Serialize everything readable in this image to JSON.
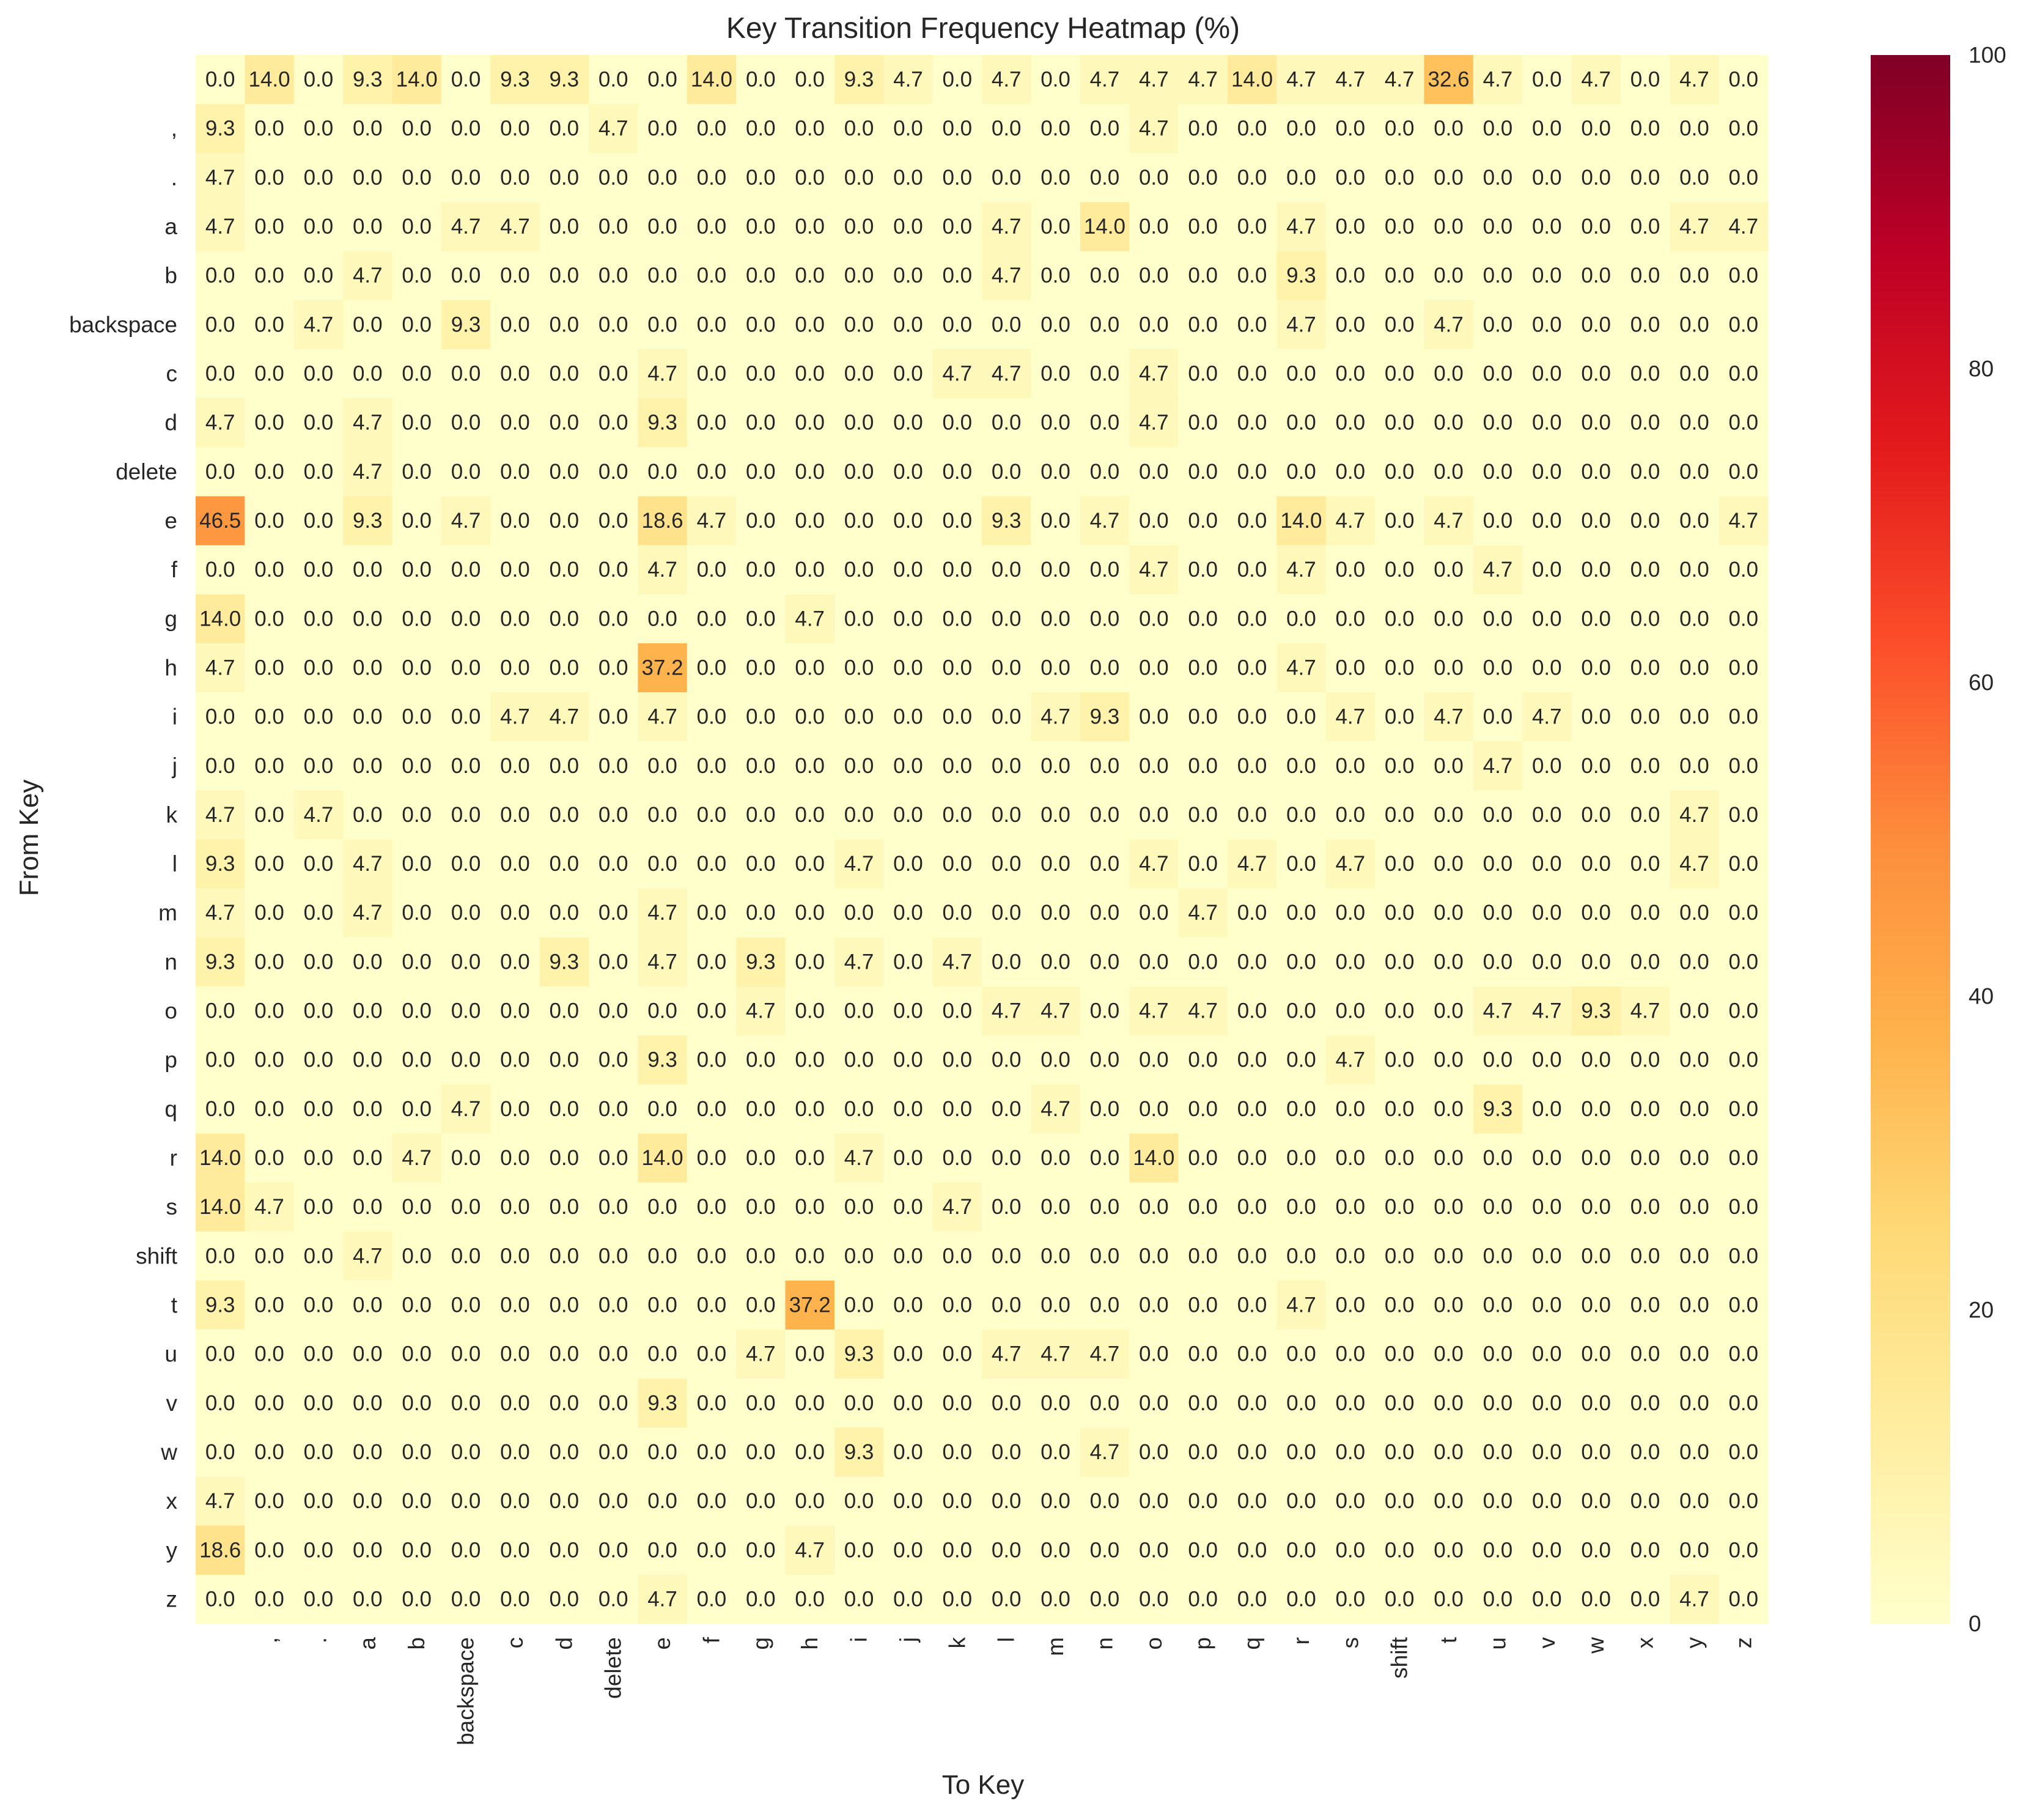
{
  "chart_data": {
    "type": "heatmap",
    "title": "Key Transition Frequency Heatmap (%)",
    "xlabel": "To Key",
    "ylabel": "From Key",
    "colormap": "YlOrRd",
    "vmin": 0,
    "vmax": 100,
    "colorbar_ticks": [
      0,
      20,
      40,
      60,
      80,
      100
    ],
    "grid": false,
    "value_format": "0.0",
    "row_labels": [
      "",
      ",",
      ".",
      "a",
      "b",
      "backspace",
      "c",
      "d",
      "delete",
      "e",
      "f",
      "g",
      "h",
      "i",
      "j",
      "k",
      "l",
      "m",
      "n",
      "o",
      "p",
      "q",
      "r",
      "s",
      "shift",
      "t",
      "u",
      "v",
      "w",
      "x",
      "y",
      "z"
    ],
    "col_labels": [
      "",
      ",",
      ".",
      "a",
      "b",
      "backspace",
      "c",
      "d",
      "delete",
      "e",
      "f",
      "g",
      "h",
      "i",
      "j",
      "k",
      "l",
      "m",
      "n",
      "o",
      "p",
      "q",
      "r",
      "s",
      "shift",
      "t",
      "u",
      "v",
      "w",
      "x",
      "y",
      "z"
    ],
    "values": [
      [
        0.0,
        14.0,
        0.0,
        9.3,
        14.0,
        0.0,
        9.3,
        9.3,
        0.0,
        0.0,
        14.0,
        0.0,
        0.0,
        9.3,
        4.7,
        0.0,
        4.7,
        0.0,
        4.7,
        4.7,
        4.7,
        14.0,
        4.7,
        4.7,
        4.7,
        32.6,
        4.7,
        0.0,
        4.7,
        0.0,
        4.7,
        0.0
      ],
      [
        9.3,
        0.0,
        0.0,
        0.0,
        0.0,
        0.0,
        0.0,
        0.0,
        4.7,
        0.0,
        0.0,
        0.0,
        0.0,
        0.0,
        0.0,
        0.0,
        0.0,
        0.0,
        0.0,
        4.7,
        0.0,
        0.0,
        0.0,
        0.0,
        0.0,
        0.0,
        0.0,
        0.0,
        0.0,
        0.0,
        0.0,
        0.0
      ],
      [
        4.7,
        0.0,
        0.0,
        0.0,
        0.0,
        0.0,
        0.0,
        0.0,
        0.0,
        0.0,
        0.0,
        0.0,
        0.0,
        0.0,
        0.0,
        0.0,
        0.0,
        0.0,
        0.0,
        0.0,
        0.0,
        0.0,
        0.0,
        0.0,
        0.0,
        0.0,
        0.0,
        0.0,
        0.0,
        0.0,
        0.0,
        0.0
      ],
      [
        4.7,
        0.0,
        0.0,
        0.0,
        0.0,
        4.7,
        4.7,
        0.0,
        0.0,
        0.0,
        0.0,
        0.0,
        0.0,
        0.0,
        0.0,
        0.0,
        4.7,
        0.0,
        14.0,
        0.0,
        0.0,
        0.0,
        4.7,
        0.0,
        0.0,
        0.0,
        0.0,
        0.0,
        0.0,
        0.0,
        4.7,
        4.7
      ],
      [
        0.0,
        0.0,
        0.0,
        4.7,
        0.0,
        0.0,
        0.0,
        0.0,
        0.0,
        0.0,
        0.0,
        0.0,
        0.0,
        0.0,
        0.0,
        0.0,
        4.7,
        0.0,
        0.0,
        0.0,
        0.0,
        0.0,
        9.3,
        0.0,
        0.0,
        0.0,
        0.0,
        0.0,
        0.0,
        0.0,
        0.0,
        0.0
      ],
      [
        0.0,
        0.0,
        4.7,
        0.0,
        0.0,
        9.3,
        0.0,
        0.0,
        0.0,
        0.0,
        0.0,
        0.0,
        0.0,
        0.0,
        0.0,
        0.0,
        0.0,
        0.0,
        0.0,
        0.0,
        0.0,
        0.0,
        4.7,
        0.0,
        0.0,
        4.7,
        0.0,
        0.0,
        0.0,
        0.0,
        0.0,
        0.0
      ],
      [
        0.0,
        0.0,
        0.0,
        0.0,
        0.0,
        0.0,
        0.0,
        0.0,
        0.0,
        4.7,
        0.0,
        0.0,
        0.0,
        0.0,
        0.0,
        4.7,
        4.7,
        0.0,
        0.0,
        4.7,
        0.0,
        0.0,
        0.0,
        0.0,
        0.0,
        0.0,
        0.0,
        0.0,
        0.0,
        0.0,
        0.0,
        0.0
      ],
      [
        4.7,
        0.0,
        0.0,
        4.7,
        0.0,
        0.0,
        0.0,
        0.0,
        0.0,
        9.3,
        0.0,
        0.0,
        0.0,
        0.0,
        0.0,
        0.0,
        0.0,
        0.0,
        0.0,
        4.7,
        0.0,
        0.0,
        0.0,
        0.0,
        0.0,
        0.0,
        0.0,
        0.0,
        0.0,
        0.0,
        0.0,
        0.0
      ],
      [
        0.0,
        0.0,
        0.0,
        4.7,
        0.0,
        0.0,
        0.0,
        0.0,
        0.0,
        0.0,
        0.0,
        0.0,
        0.0,
        0.0,
        0.0,
        0.0,
        0.0,
        0.0,
        0.0,
        0.0,
        0.0,
        0.0,
        0.0,
        0.0,
        0.0,
        0.0,
        0.0,
        0.0,
        0.0,
        0.0,
        0.0,
        0.0
      ],
      [
        46.5,
        0.0,
        0.0,
        9.3,
        0.0,
        4.7,
        0.0,
        0.0,
        0.0,
        18.6,
        4.7,
        0.0,
        0.0,
        0.0,
        0.0,
        0.0,
        9.3,
        0.0,
        4.7,
        0.0,
        0.0,
        0.0,
        14.0,
        4.7,
        0.0,
        4.7,
        0.0,
        0.0,
        0.0,
        0.0,
        0.0,
        4.7
      ],
      [
        0.0,
        0.0,
        0.0,
        0.0,
        0.0,
        0.0,
        0.0,
        0.0,
        0.0,
        4.7,
        0.0,
        0.0,
        0.0,
        0.0,
        0.0,
        0.0,
        0.0,
        0.0,
        0.0,
        4.7,
        0.0,
        0.0,
        4.7,
        0.0,
        0.0,
        0.0,
        4.7,
        0.0,
        0.0,
        0.0,
        0.0,
        0.0
      ],
      [
        14.0,
        0.0,
        0.0,
        0.0,
        0.0,
        0.0,
        0.0,
        0.0,
        0.0,
        0.0,
        0.0,
        0.0,
        4.7,
        0.0,
        0.0,
        0.0,
        0.0,
        0.0,
        0.0,
        0.0,
        0.0,
        0.0,
        0.0,
        0.0,
        0.0,
        0.0,
        0.0,
        0.0,
        0.0,
        0.0,
        0.0,
        0.0
      ],
      [
        4.7,
        0.0,
        0.0,
        0.0,
        0.0,
        0.0,
        0.0,
        0.0,
        0.0,
        37.2,
        0.0,
        0.0,
        0.0,
        0.0,
        0.0,
        0.0,
        0.0,
        0.0,
        0.0,
        0.0,
        0.0,
        0.0,
        4.7,
        0.0,
        0.0,
        0.0,
        0.0,
        0.0,
        0.0,
        0.0,
        0.0,
        0.0
      ],
      [
        0.0,
        0.0,
        0.0,
        0.0,
        0.0,
        0.0,
        4.7,
        4.7,
        0.0,
        4.7,
        0.0,
        0.0,
        0.0,
        0.0,
        0.0,
        0.0,
        0.0,
        4.7,
        9.3,
        0.0,
        0.0,
        0.0,
        0.0,
        4.7,
        0.0,
        4.7,
        0.0,
        4.7,
        0.0,
        0.0,
        0.0,
        0.0
      ],
      [
        0.0,
        0.0,
        0.0,
        0.0,
        0.0,
        0.0,
        0.0,
        0.0,
        0.0,
        0.0,
        0.0,
        0.0,
        0.0,
        0.0,
        0.0,
        0.0,
        0.0,
        0.0,
        0.0,
        0.0,
        0.0,
        0.0,
        0.0,
        0.0,
        0.0,
        0.0,
        4.7,
        0.0,
        0.0,
        0.0,
        0.0,
        0.0
      ],
      [
        4.7,
        0.0,
        4.7,
        0.0,
        0.0,
        0.0,
        0.0,
        0.0,
        0.0,
        0.0,
        0.0,
        0.0,
        0.0,
        0.0,
        0.0,
        0.0,
        0.0,
        0.0,
        0.0,
        0.0,
        0.0,
        0.0,
        0.0,
        0.0,
        0.0,
        0.0,
        0.0,
        0.0,
        0.0,
        0.0,
        4.7,
        0.0
      ],
      [
        9.3,
        0.0,
        0.0,
        4.7,
        0.0,
        0.0,
        0.0,
        0.0,
        0.0,
        0.0,
        0.0,
        0.0,
        0.0,
        4.7,
        0.0,
        0.0,
        0.0,
        0.0,
        0.0,
        4.7,
        0.0,
        4.7,
        0.0,
        4.7,
        0.0,
        0.0,
        0.0,
        0.0,
        0.0,
        0.0,
        4.7,
        0.0
      ],
      [
        4.7,
        0.0,
        0.0,
        4.7,
        0.0,
        0.0,
        0.0,
        0.0,
        0.0,
        4.7,
        0.0,
        0.0,
        0.0,
        0.0,
        0.0,
        0.0,
        0.0,
        0.0,
        0.0,
        0.0,
        4.7,
        0.0,
        0.0,
        0.0,
        0.0,
        0.0,
        0.0,
        0.0,
        0.0,
        0.0,
        0.0,
        0.0
      ],
      [
        9.3,
        0.0,
        0.0,
        0.0,
        0.0,
        0.0,
        0.0,
        9.3,
        0.0,
        4.7,
        0.0,
        9.3,
        0.0,
        4.7,
        0.0,
        4.7,
        0.0,
        0.0,
        0.0,
        0.0,
        0.0,
        0.0,
        0.0,
        0.0,
        0.0,
        0.0,
        0.0,
        0.0,
        0.0,
        0.0,
        0.0,
        0.0
      ],
      [
        0.0,
        0.0,
        0.0,
        0.0,
        0.0,
        0.0,
        0.0,
        0.0,
        0.0,
        0.0,
        0.0,
        4.7,
        0.0,
        0.0,
        0.0,
        0.0,
        4.7,
        4.7,
        0.0,
        4.7,
        4.7,
        0.0,
        0.0,
        0.0,
        0.0,
        0.0,
        4.7,
        4.7,
        9.3,
        4.7,
        0.0,
        0.0
      ],
      [
        0.0,
        0.0,
        0.0,
        0.0,
        0.0,
        0.0,
        0.0,
        0.0,
        0.0,
        9.3,
        0.0,
        0.0,
        0.0,
        0.0,
        0.0,
        0.0,
        0.0,
        0.0,
        0.0,
        0.0,
        0.0,
        0.0,
        0.0,
        4.7,
        0.0,
        0.0,
        0.0,
        0.0,
        0.0,
        0.0,
        0.0,
        0.0
      ],
      [
        0.0,
        0.0,
        0.0,
        0.0,
        0.0,
        4.7,
        0.0,
        0.0,
        0.0,
        0.0,
        0.0,
        0.0,
        0.0,
        0.0,
        0.0,
        0.0,
        0.0,
        4.7,
        0.0,
        0.0,
        0.0,
        0.0,
        0.0,
        0.0,
        0.0,
        0.0,
        9.3,
        0.0,
        0.0,
        0.0,
        0.0,
        0.0
      ],
      [
        14.0,
        0.0,
        0.0,
        0.0,
        4.7,
        0.0,
        0.0,
        0.0,
        0.0,
        14.0,
        0.0,
        0.0,
        0.0,
        4.7,
        0.0,
        0.0,
        0.0,
        0.0,
        0.0,
        14.0,
        0.0,
        0.0,
        0.0,
        0.0,
        0.0,
        0.0,
        0.0,
        0.0,
        0.0,
        0.0,
        0.0,
        0.0
      ],
      [
        14.0,
        4.7,
        0.0,
        0.0,
        0.0,
        0.0,
        0.0,
        0.0,
        0.0,
        0.0,
        0.0,
        0.0,
        0.0,
        0.0,
        0.0,
        4.7,
        0.0,
        0.0,
        0.0,
        0.0,
        0.0,
        0.0,
        0.0,
        0.0,
        0.0,
        0.0,
        0.0,
        0.0,
        0.0,
        0.0,
        0.0,
        0.0
      ],
      [
        0.0,
        0.0,
        0.0,
        4.7,
        0.0,
        0.0,
        0.0,
        0.0,
        0.0,
        0.0,
        0.0,
        0.0,
        0.0,
        0.0,
        0.0,
        0.0,
        0.0,
        0.0,
        0.0,
        0.0,
        0.0,
        0.0,
        0.0,
        0.0,
        0.0,
        0.0,
        0.0,
        0.0,
        0.0,
        0.0,
        0.0,
        0.0
      ],
      [
        9.3,
        0.0,
        0.0,
        0.0,
        0.0,
        0.0,
        0.0,
        0.0,
        0.0,
        0.0,
        0.0,
        0.0,
        37.2,
        0.0,
        0.0,
        0.0,
        0.0,
        0.0,
        0.0,
        0.0,
        0.0,
        0.0,
        4.7,
        0.0,
        0.0,
        0.0,
        0.0,
        0.0,
        0.0,
        0.0,
        0.0,
        0.0
      ],
      [
        0.0,
        0.0,
        0.0,
        0.0,
        0.0,
        0.0,
        0.0,
        0.0,
        0.0,
        0.0,
        0.0,
        4.7,
        0.0,
        9.3,
        0.0,
        0.0,
        4.7,
        4.7,
        4.7,
        0.0,
        0.0,
        0.0,
        0.0,
        0.0,
        0.0,
        0.0,
        0.0,
        0.0,
        0.0,
        0.0,
        0.0,
        0.0
      ],
      [
        0.0,
        0.0,
        0.0,
        0.0,
        0.0,
        0.0,
        0.0,
        0.0,
        0.0,
        9.3,
        0.0,
        0.0,
        0.0,
        0.0,
        0.0,
        0.0,
        0.0,
        0.0,
        0.0,
        0.0,
        0.0,
        0.0,
        0.0,
        0.0,
        0.0,
        0.0,
        0.0,
        0.0,
        0.0,
        0.0,
        0.0,
        0.0
      ],
      [
        0.0,
        0.0,
        0.0,
        0.0,
        0.0,
        0.0,
        0.0,
        0.0,
        0.0,
        0.0,
        0.0,
        0.0,
        0.0,
        9.3,
        0.0,
        0.0,
        0.0,
        0.0,
        4.7,
        0.0,
        0.0,
        0.0,
        0.0,
        0.0,
        0.0,
        0.0,
        0.0,
        0.0,
        0.0,
        0.0,
        0.0,
        0.0
      ],
      [
        4.7,
        0.0,
        0.0,
        0.0,
        0.0,
        0.0,
        0.0,
        0.0,
        0.0,
        0.0,
        0.0,
        0.0,
        0.0,
        0.0,
        0.0,
        0.0,
        0.0,
        0.0,
        0.0,
        0.0,
        0.0,
        0.0,
        0.0,
        0.0,
        0.0,
        0.0,
        0.0,
        0.0,
        0.0,
        0.0,
        0.0,
        0.0
      ],
      [
        18.6,
        0.0,
        0.0,
        0.0,
        0.0,
        0.0,
        0.0,
        0.0,
        0.0,
        0.0,
        0.0,
        0.0,
        4.7,
        0.0,
        0.0,
        0.0,
        0.0,
        0.0,
        0.0,
        0.0,
        0.0,
        0.0,
        0.0,
        0.0,
        0.0,
        0.0,
        0.0,
        0.0,
        0.0,
        0.0,
        0.0,
        0.0
      ],
      [
        0.0,
        0.0,
        0.0,
        0.0,
        0.0,
        0.0,
        0.0,
        0.0,
        0.0,
        4.7,
        0.0,
        0.0,
        0.0,
        0.0,
        0.0,
        0.0,
        0.0,
        0.0,
        0.0,
        0.0,
        0.0,
        0.0,
        0.0,
        0.0,
        0.0,
        0.0,
        0.0,
        0.0,
        0.0,
        0.0,
        4.7,
        0.0
      ]
    ]
  }
}
